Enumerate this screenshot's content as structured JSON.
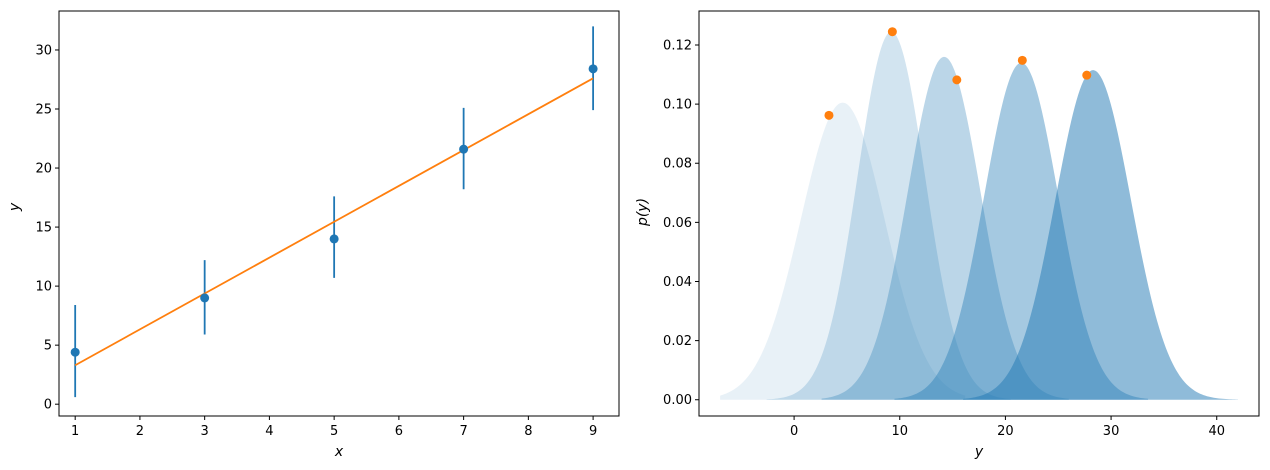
{
  "chart_data": [
    {
      "type": "scatter",
      "xlabel": "x",
      "ylabel": "y",
      "xlim": [
        0.75,
        9.4
      ],
      "ylim": [
        -1.0,
        33.3
      ],
      "xticks": [
        1,
        2,
        3,
        4,
        5,
        6,
        7,
        8,
        9
      ],
      "yticks": [
        0,
        5,
        10,
        15,
        20,
        25,
        30
      ],
      "series": [
        {
          "kind": "errorbar",
          "color": "#1f77b4",
          "x": [
            1,
            3,
            5,
            7,
            9
          ],
          "y": [
            4.4,
            9.0,
            14.0,
            21.6,
            28.4
          ],
          "yerr_low": [
            0.6,
            5.9,
            10.7,
            18.2,
            24.9
          ],
          "yerr_high": [
            8.4,
            12.2,
            17.6,
            25.1,
            32.0
          ]
        },
        {
          "kind": "line",
          "color": "#ff7f0e",
          "x": [
            1,
            9
          ],
          "y": [
            3.3,
            27.6
          ]
        }
      ]
    },
    {
      "type": "area",
      "xlabel": "y",
      "ylabel": "p(y)",
      "xlim": [
        -9.0,
        44.0
      ],
      "ylim": [
        -0.0055,
        0.1315
      ],
      "xticks": [
        0,
        10,
        20,
        30,
        40
      ],
      "yticks": [
        0.0,
        0.02,
        0.04,
        0.06,
        0.08,
        0.1,
        0.12
      ],
      "ytick_labels": [
        "0.00",
        "0.02",
        "0.04",
        "0.06",
        "0.08",
        "0.10",
        "0.12"
      ],
      "fill_color": "#1f77b4",
      "distributions": [
        {
          "mean": 4.6,
          "peak": 0.1005,
          "sd": 3.97,
          "x_from": -7.0,
          "x_to": 16.2,
          "alpha": 0.1
        },
        {
          "mean": 9.2,
          "peak": 0.1245,
          "sd": 3.2,
          "x_from": -2.6,
          "x_to": 20.5,
          "alpha": 0.2
        },
        {
          "mean": 14.2,
          "peak": 0.116,
          "sd": 3.44,
          "x_from": 2.6,
          "x_to": 26.0,
          "alpha": 0.3
        },
        {
          "mean": 21.5,
          "peak": 0.114,
          "sd": 3.5,
          "x_from": 9.5,
          "x_to": 33.5,
          "alpha": 0.4
        },
        {
          "mean": 28.3,
          "peak": 0.1115,
          "sd": 3.58,
          "x_from": 16.0,
          "x_to": 42.0,
          "alpha": 0.5
        }
      ],
      "points": {
        "color": "#ff7f0e",
        "x": [
          3.3,
          9.3,
          15.4,
          21.6,
          27.7
        ],
        "y": [
          0.0962,
          0.1245,
          0.1082,
          0.1148,
          0.1098
        ]
      }
    }
  ]
}
